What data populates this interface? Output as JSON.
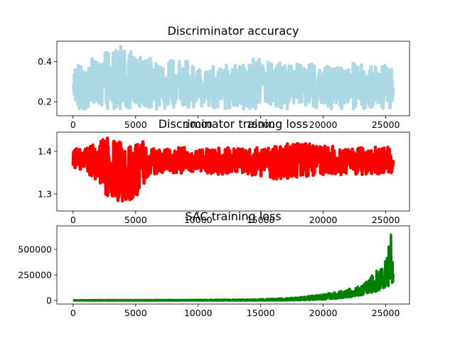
{
  "chart_data": [
    {
      "type": "line",
      "title": "Discriminator accuracy",
      "xlabel": "",
      "ylabel": "",
      "xlim": [
        -1300,
        26900
      ],
      "ylim": [
        0.13,
        0.5
      ],
      "xticks": [
        0,
        5000,
        10000,
        15000,
        20000,
        25000
      ],
      "xtick_labels": [
        "0",
        "5000",
        "10000",
        "15000",
        "20000",
        "25000"
      ],
      "yticks": [
        0.2,
        0.4
      ],
      "ytick_labels": [
        "0.2",
        "0.4"
      ],
      "grid": false,
      "series": [
        {
          "color": "#add8e6",
          "x_range": [
            0,
            25600
          ],
          "envelope": {
            "x": [
              0,
              1000,
              2000,
              3000,
              4000,
              5000,
              6000,
              7000,
              8000,
              9000,
              10000,
              11000,
              12000,
              13000,
              14000,
              15000,
              16000,
              17000,
              18000,
              19000,
              20000,
              21000,
              22000,
              23000,
              24000,
              25000,
              25600
            ],
            "upper": [
              0.36,
              0.41,
              0.44,
              0.45,
              0.48,
              0.43,
              0.42,
              0.4,
              0.41,
              0.4,
              0.42,
              0.39,
              0.4,
              0.38,
              0.4,
              0.43,
              0.4,
              0.39,
              0.4,
              0.39,
              0.38,
              0.38,
              0.39,
              0.4,
              0.38,
              0.38,
              0.36
            ],
            "lower": [
              0.17,
              0.16,
              0.17,
              0.16,
              0.16,
              0.17,
              0.16,
              0.16,
              0.17,
              0.16,
              0.17,
              0.16,
              0.16,
              0.17,
              0.16,
              0.16,
              0.17,
              0.16,
              0.17,
              0.16,
              0.17,
              0.16,
              0.16,
              0.16,
              0.15,
              0.16,
              0.17
            ]
          }
        }
      ]
    },
    {
      "type": "line",
      "title": "Discriminator training loss",
      "xlabel": "",
      "ylabel": "",
      "xlim": [
        -1300,
        26900
      ],
      "ylim": [
        1.26,
        1.445
      ],
      "xticks": [
        0,
        5000,
        10000,
        15000,
        20000,
        25000
      ],
      "xtick_labels": [
        "0",
        "5000",
        "10000",
        "15000",
        "20000",
        "25000"
      ],
      "yticks": [
        1.3,
        1.4
      ],
      "ytick_labels": [
        "1.3",
        "1.4"
      ],
      "grid": false,
      "series": [
        {
          "color": "#ff0000",
          "x_range": [
            0,
            25600
          ],
          "envelope": {
            "x": [
              0,
              1000,
              2000,
              2500,
              3000,
              3500,
              4000,
              4500,
              5000,
              5500,
              6000,
              7000,
              8000,
              9000,
              10000,
              12000,
              14000,
              16000,
              18000,
              19000,
              20000,
              22000,
              24000,
              25600
            ],
            "upper": [
              1.405,
              1.41,
              1.42,
              1.44,
              1.43,
              1.425,
              1.42,
              1.41,
              1.42,
              1.43,
              1.41,
              1.405,
              1.41,
              1.41,
              1.405,
              1.41,
              1.405,
              1.415,
              1.42,
              1.42,
              1.415,
              1.41,
              1.41,
              1.41
            ],
            "lower": [
              1.36,
              1.35,
              1.33,
              1.3,
              1.29,
              1.28,
              1.27,
              1.28,
              1.29,
              1.31,
              1.34,
              1.35,
              1.345,
              1.35,
              1.35,
              1.345,
              1.345,
              1.33,
              1.34,
              1.34,
              1.345,
              1.345,
              1.345,
              1.35
            ]
          }
        }
      ]
    },
    {
      "type": "line",
      "title": "SAC training loss",
      "xlabel": "",
      "ylabel": "",
      "xlim": [
        -1300,
        26900
      ],
      "ylim": [
        -35000,
        730000
      ],
      "xticks": [
        0,
        5000,
        10000,
        15000,
        20000,
        25000
      ],
      "xtick_labels": [
        "0",
        "5000",
        "10000",
        "15000",
        "20000",
        "25000"
      ],
      "yticks": [
        0,
        250000,
        500000
      ],
      "ytick_labels": [
        "0",
        "250000",
        "500000"
      ],
      "grid": false,
      "series": [
        {
          "color": "#008000",
          "x_range": [
            0,
            25600
          ],
          "envelope": {
            "x": [
              0,
              5000,
              10000,
              14000,
              16000,
              18000,
              19000,
              20000,
              21000,
              22000,
              23000,
              23500,
              24000,
              24500,
              25000,
              25200,
              25400,
              25500,
              25600
            ],
            "upper": [
              3000,
              4000,
              6000,
              10000,
              16000,
              30000,
              45000,
              60000,
              85000,
              110000,
              150000,
              200000,
              260000,
              320000,
              390000,
              500000,
              690000,
              450000,
              300000
            ],
            "lower": [
              0,
              0,
              0,
              0,
              0,
              2000,
              5000,
              10000,
              18000,
              30000,
              50000,
              65000,
              80000,
              100000,
              120000,
              140000,
              160000,
              170000,
              180000
            ]
          }
        }
      ]
    }
  ]
}
